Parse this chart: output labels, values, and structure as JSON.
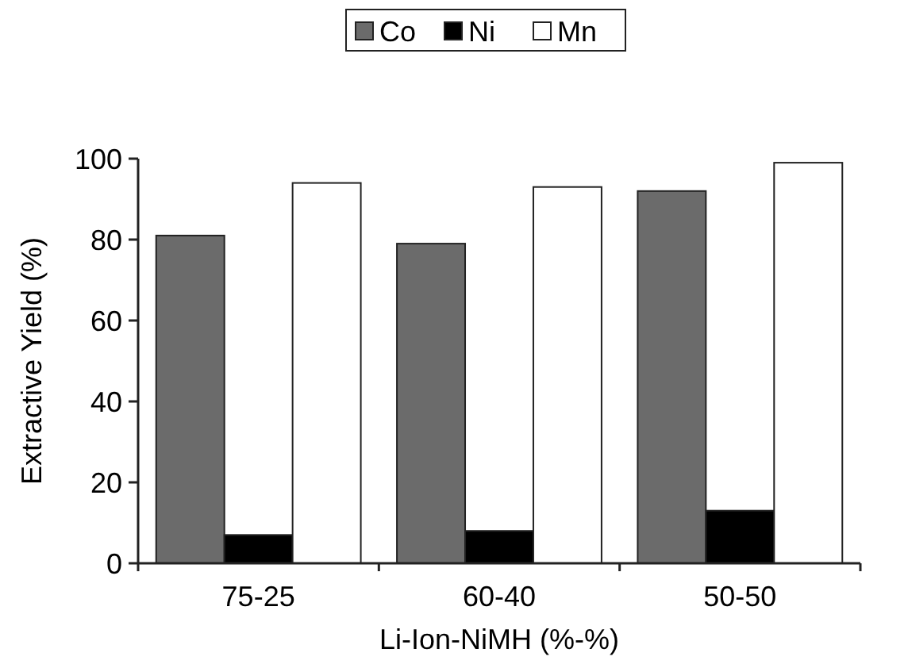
{
  "chart_data": {
    "type": "bar",
    "xlabel": "Li-Ion-NiMH (%-%)",
    "ylabel": "Extractive Yield (%)",
    "categories": [
      "75-25",
      "60-40",
      "50-50"
    ],
    "series": [
      {
        "name": "Co",
        "color": "#6b6b6b",
        "values": [
          81,
          79,
          92
        ]
      },
      {
        "name": "Ni",
        "color": "#000000",
        "values": [
          7,
          8,
          13
        ]
      },
      {
        "name": "Mn",
        "color": "#ffffff",
        "values": [
          94,
          93,
          99
        ]
      }
    ],
    "ylim": [
      0,
      100
    ],
    "yticks": [
      0,
      20,
      40,
      60,
      80,
      100
    ],
    "grid": false,
    "legend": "top"
  }
}
